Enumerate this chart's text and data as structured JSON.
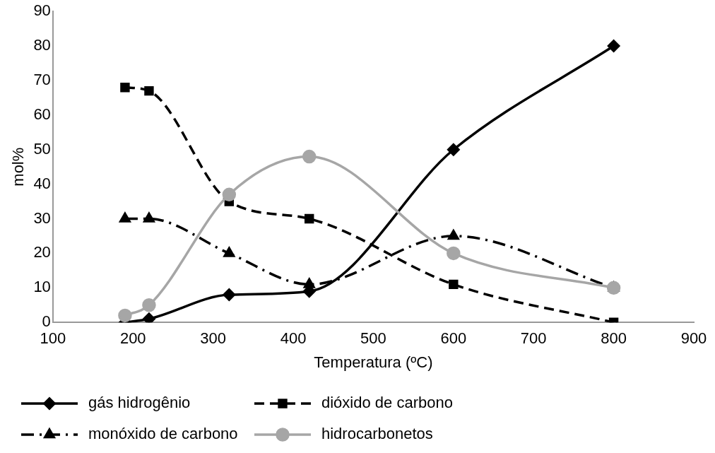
{
  "chart_data": {
    "type": "line",
    "xlabel": "Temperatura (ºC)",
    "ylabel": "mol%",
    "x": [
      190,
      220,
      320,
      420,
      600,
      800
    ],
    "xlim": [
      100,
      900
    ],
    "xticks": [
      100,
      200,
      300,
      400,
      500,
      600,
      700,
      800,
      900
    ],
    "ylim": [
      0,
      90
    ],
    "yticks": [
      0,
      10,
      20,
      30,
      40,
      50,
      60,
      70,
      80,
      90
    ],
    "grid": false,
    "legend": "bottom",
    "series": [
      {
        "name": "gás hidrogênio",
        "color": "#000000",
        "marker": "diamond",
        "line_style": "solid",
        "values": [
          0,
          1,
          8,
          9,
          50,
          80
        ]
      },
      {
        "name": "dióxido de carbono",
        "color": "#000000",
        "marker": "square",
        "line_style": "dashed",
        "values": [
          68,
          67,
          35,
          30,
          11,
          0
        ]
      },
      {
        "name": "monóxido de carbono",
        "color": "#000000",
        "marker": "triangle",
        "line_style": "dashdot",
        "values": [
          30,
          30,
          20,
          11,
          25,
          10
        ]
      },
      {
        "name": "hidrocarbonetos",
        "color": "#a6a6a6",
        "marker": "circle",
        "line_style": "solid",
        "values": [
          2,
          5,
          37,
          48,
          20,
          10
        ]
      }
    ]
  }
}
